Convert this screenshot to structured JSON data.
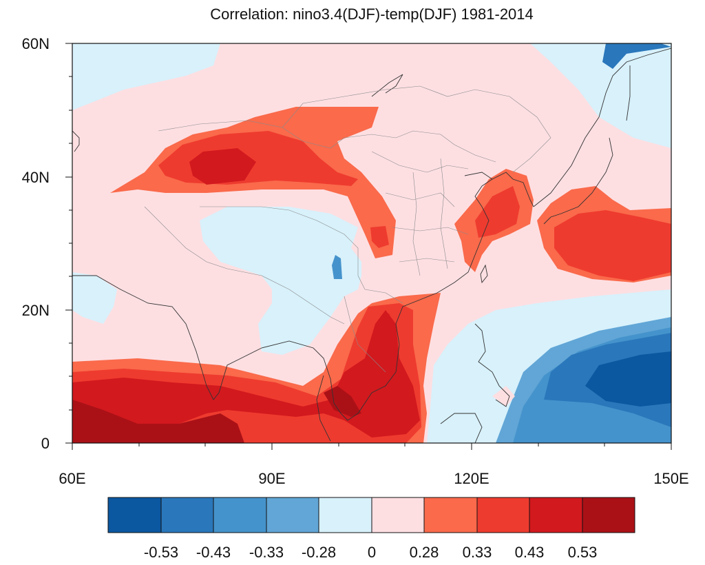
{
  "title": "Correlation: nino3.4(DJF)-temp(DJF) 1981-2014",
  "map": {
    "lon_range": [
      60,
      150
    ],
    "lat_range": [
      0,
      60
    ],
    "x_ticks": [
      "60E",
      "90E",
      "120E",
      "150E"
    ],
    "y_ticks": [
      "60N",
      "40N",
      "20N",
      "0"
    ]
  },
  "colorbar": {
    "colors": [
      "#0b57a0",
      "#2a77bb",
      "#4593cc",
      "#61a6d6",
      "#d8f1fb",
      "#fddfe2",
      "#fa6a4b",
      "#ee3b2f",
      "#d2191e",
      "#aa1117"
    ],
    "labels": [
      "-0.53",
      "-0.43",
      "-0.33",
      "-0.28",
      "0",
      "0.28",
      "0.33",
      "0.43",
      "0.53"
    ]
  }
}
